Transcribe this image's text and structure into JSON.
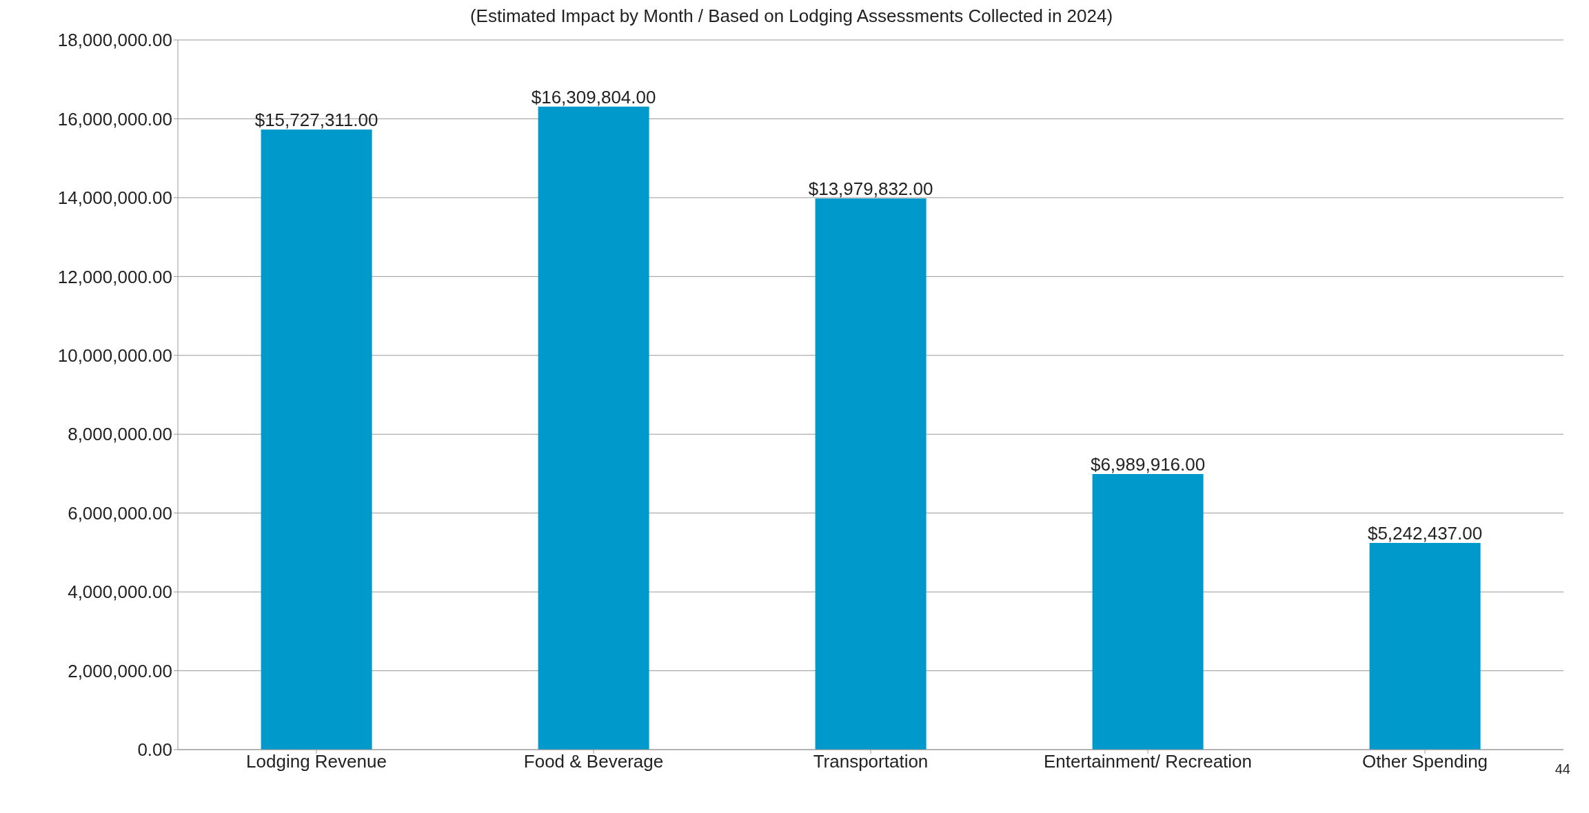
{
  "chart_data": {
    "type": "bar",
    "subtitle": "(Estimated Impact by Month / Based on Lodging Assessments Collected in 2024)",
    "categories": [
      "Lodging Revenue",
      "Food & Beverage",
      "Transportation",
      "Entertainment/ Recreation",
      "Other Spending"
    ],
    "values": [
      15727311,
      16309804,
      13979832,
      6989916,
      5242437
    ],
    "value_labels": [
      "$15,727,311.00",
      "$16,309,804.00",
      "$13,979,832.00",
      "$6,989,916.00",
      "$5,242,437.00"
    ],
    "color": "#0099cc",
    "ylim": [
      0,
      18000000
    ],
    "yticks": [
      {
        "value": 0,
        "label": "0.00"
      },
      {
        "value": 2000000,
        "label": "2,000,000.00"
      },
      {
        "value": 4000000,
        "label": "4,000,000.00"
      },
      {
        "value": 6000000,
        "label": "6,000,000.00"
      },
      {
        "value": 8000000,
        "label": "8,000,000.00"
      },
      {
        "value": 10000000,
        "label": "10,000,000.00"
      },
      {
        "value": 12000000,
        "label": "12,000,000.00"
      },
      {
        "value": 14000000,
        "label": "14,000,000.00"
      },
      {
        "value": 16000000,
        "label": "16,000,000.00"
      },
      {
        "value": 18000000,
        "label": "18,000,000.00"
      }
    ],
    "grid": "y",
    "annotations": [
      "44"
    ]
  }
}
